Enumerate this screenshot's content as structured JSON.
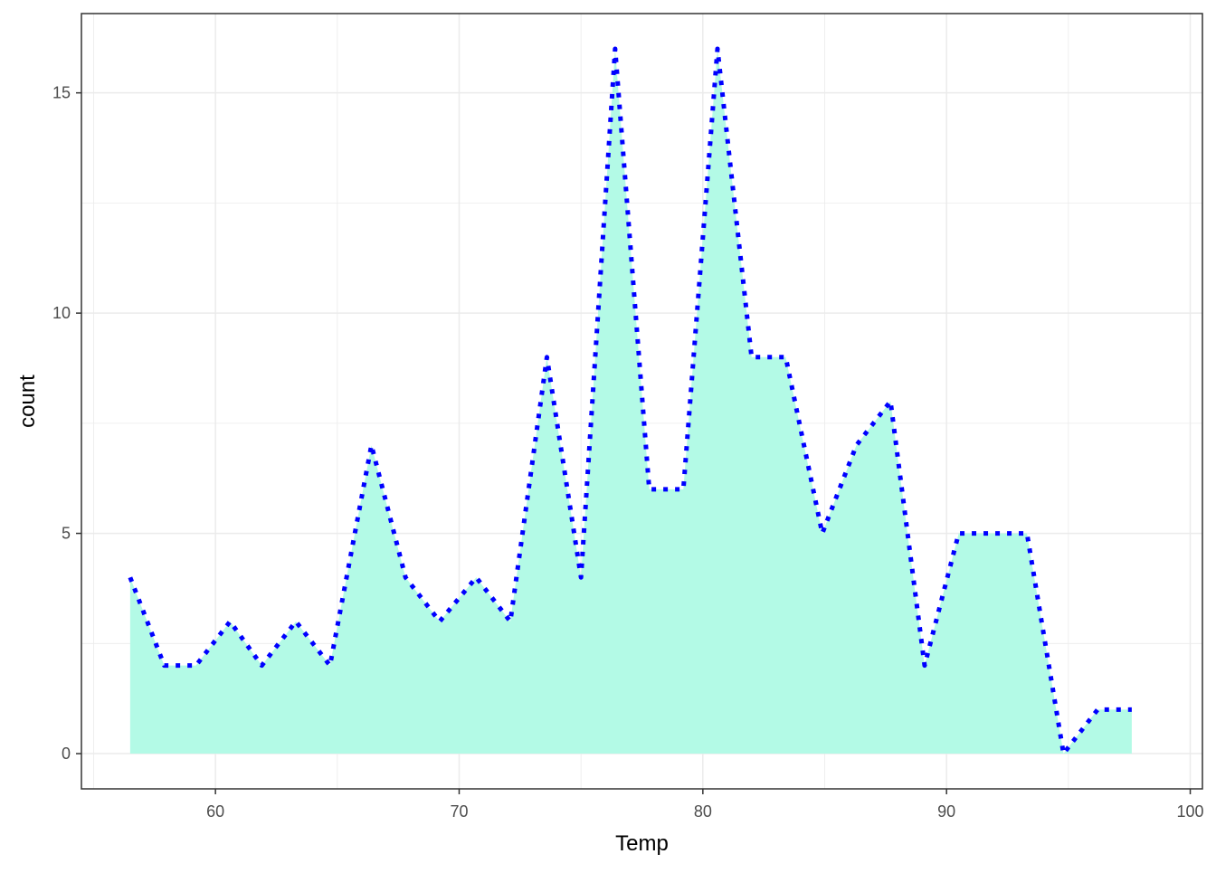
{
  "chart_data": {
    "type": "area",
    "title": "",
    "xlabel": "Temp",
    "ylabel": "count",
    "xlim": [
      54.5,
      100.5
    ],
    "ylim": [
      -0.8,
      16.8
    ],
    "x_ticks": [
      60,
      70,
      80,
      90,
      100
    ],
    "y_ticks": [
      0,
      5,
      10,
      15
    ],
    "x_tick_labels": [
      "60",
      "70",
      "80",
      "90",
      "100"
    ],
    "y_tick_labels": [
      "0",
      "5",
      "10",
      "15"
    ],
    "grid": true,
    "legend": "none",
    "colors": {
      "area_fill": "#B3FAE6",
      "line": "#0000FF",
      "grid": "#EBEBEB",
      "panel_border": "#333333"
    },
    "series": [
      {
        "x": [
          56.5,
          57.9,
          59.2,
          60.6,
          61.9,
          63.3,
          64.7,
          66.4,
          67.8,
          69.2,
          70.7,
          72.1,
          73.6,
          75.0,
          76.4,
          77.8,
          79.2,
          80.6,
          82.0,
          83.4,
          84.9,
          86.3,
          87.7,
          89.1,
          90.5,
          91.9,
          93.3,
          94.8,
          96.2,
          97.6
        ],
        "y": [
          4,
          2,
          2,
          3,
          2,
          3,
          2,
          7,
          4,
          3,
          4,
          3,
          9,
          4,
          16,
          6,
          6,
          16,
          9,
          9,
          5,
          7,
          8,
          2,
          5,
          5,
          5,
          0,
          1,
          1
        ]
      }
    ]
  }
}
